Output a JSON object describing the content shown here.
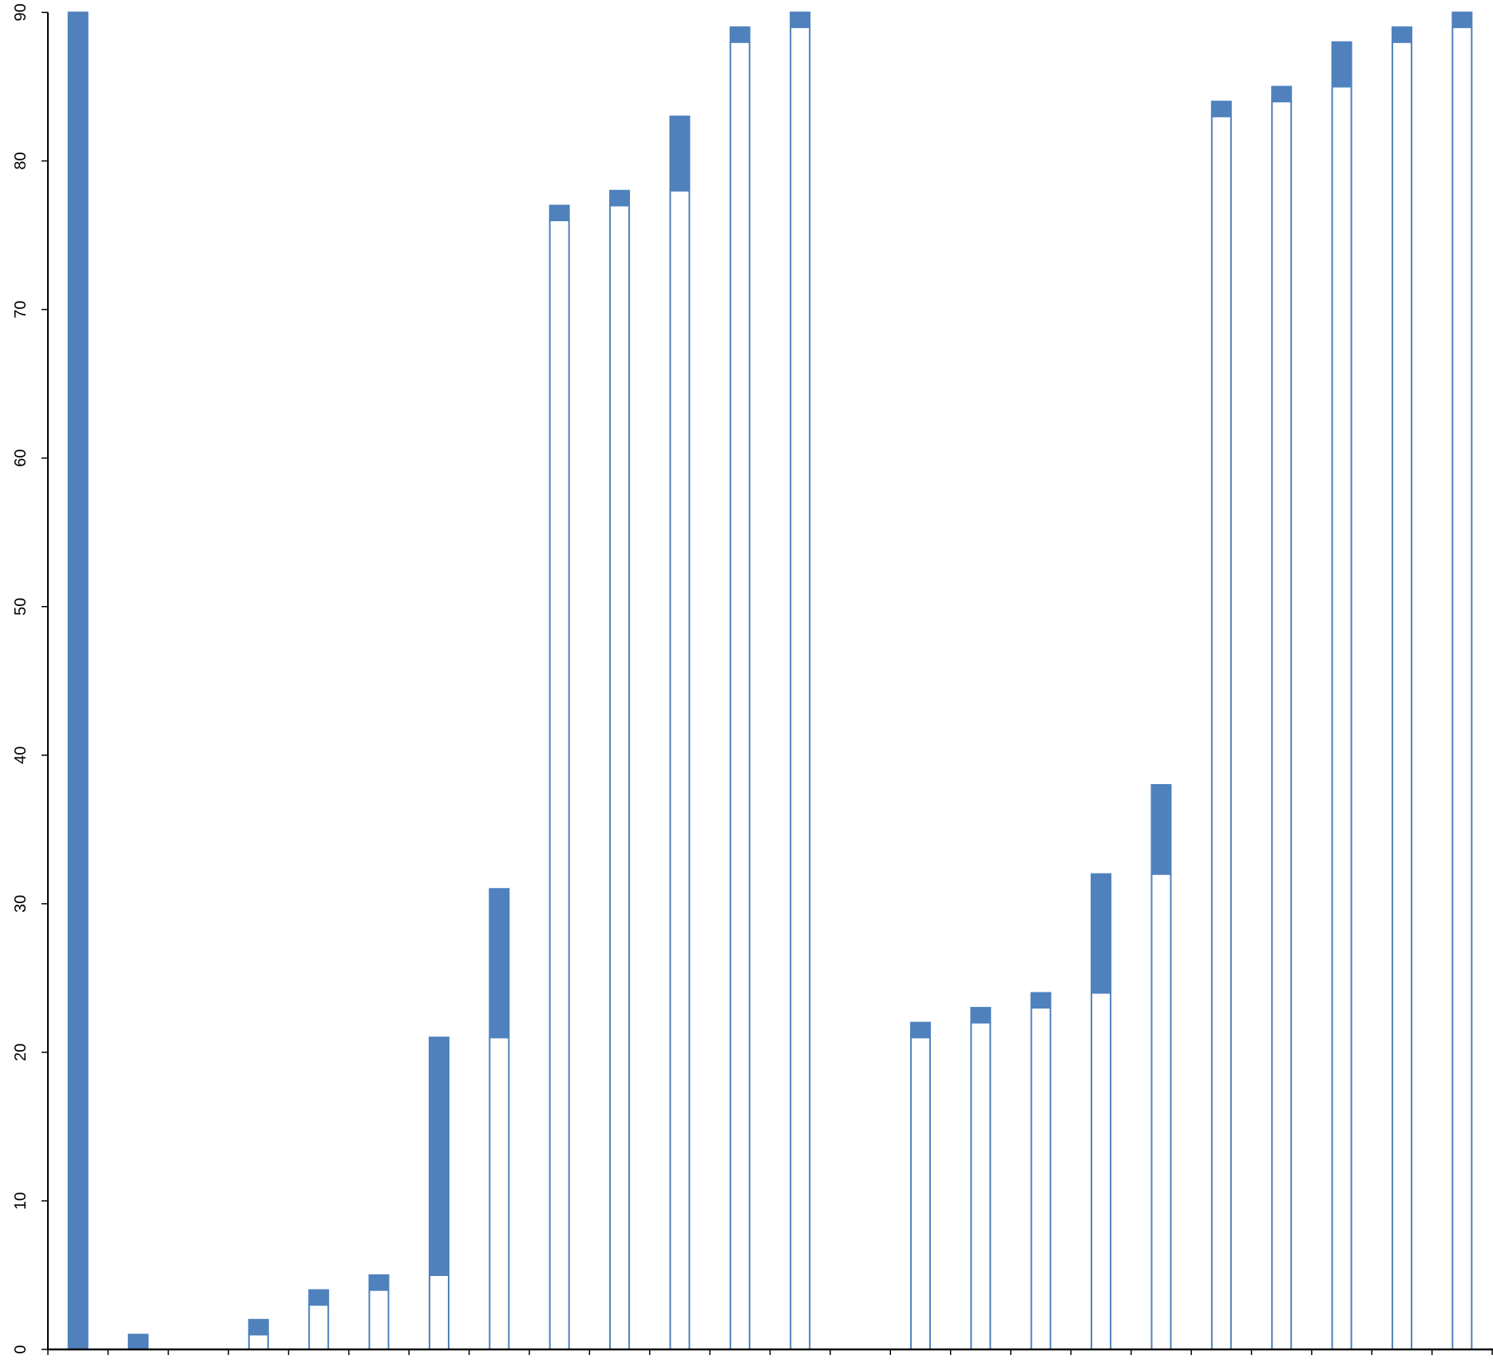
{
  "chart_data": {
    "type": "stacked_bar",
    "categories": [
      null,
      null,
      null,
      null,
      null,
      null,
      null,
      null,
      null,
      null,
      null,
      null,
      null,
      null,
      null,
      null,
      null,
      null,
      null,
      null,
      null,
      null,
      null,
      null
    ],
    "series": [
      {
        "color": "#ffffff",
        "values": [
          0,
          0,
          null,
          1,
          3,
          4,
          5,
          21,
          76,
          77,
          78,
          88,
          89,
          null,
          21,
          22,
          23,
          24,
          32,
          83,
          84,
          85,
          88,
          89
        ]
      },
      {
        "color": "#4f81bd",
        "values": [
          90,
          1,
          null,
          1,
          1,
          1,
          16,
          10,
          1,
          1,
          5,
          1,
          1,
          null,
          1,
          1,
          1,
          8,
          6,
          1,
          1,
          3,
          1,
          1
        ]
      }
    ],
    "edge_color": "#4f81bd",
    "ylim": [
      0,
      90
    ],
    "yticks": [
      0,
      10,
      20,
      30,
      40,
      50,
      60,
      70,
      80,
      90
    ]
  }
}
